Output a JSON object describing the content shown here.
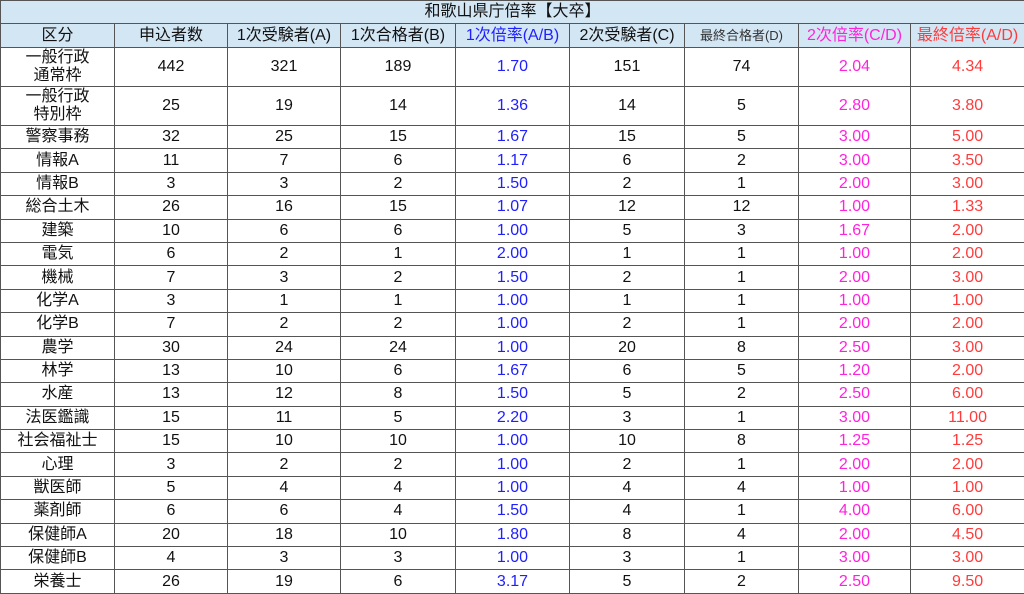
{
  "title": "和歌山県庁倍率【大卒】",
  "colors": {
    "ratio1": "#2020ff",
    "ratio2": "#ff22dd",
    "final_ratio": "#ff3b3b",
    "header_bg": "#d3e6f4"
  },
  "headers": [
    "区分",
    "申込者数",
    "1次受験者(A)",
    "1次合格者(B)",
    "1次倍率(A/B)",
    "2次受験者(C)",
    "最終合格者(D)",
    "2次倍率(C/D)",
    "最終倍率(A/D)"
  ],
  "rows": [
    [
      "一般行政\n通常枠",
      "442",
      "321",
      "189",
      "1.70",
      "151",
      "74",
      "2.04",
      "4.34"
    ],
    [
      "一般行政\n特別枠",
      "25",
      "19",
      "14",
      "1.36",
      "14",
      "5",
      "2.80",
      "3.80"
    ],
    [
      "警察事務",
      "32",
      "25",
      "15",
      "1.67",
      "15",
      "5",
      "3.00",
      "5.00"
    ],
    [
      "情報A",
      "11",
      "7",
      "6",
      "1.17",
      "6",
      "2",
      "3.00",
      "3.50"
    ],
    [
      "情報B",
      "3",
      "3",
      "2",
      "1.50",
      "2",
      "1",
      "2.00",
      "3.00"
    ],
    [
      "総合土木",
      "26",
      "16",
      "15",
      "1.07",
      "12",
      "12",
      "1.00",
      "1.33"
    ],
    [
      "建築",
      "10",
      "6",
      "6",
      "1.00",
      "5",
      "3",
      "1.67",
      "2.00"
    ],
    [
      "電気",
      "6",
      "2",
      "1",
      "2.00",
      "1",
      "1",
      "1.00",
      "2.00"
    ],
    [
      "機械",
      "7",
      "3",
      "2",
      "1.50",
      "2",
      "1",
      "2.00",
      "3.00"
    ],
    [
      "化学A",
      "3",
      "1",
      "1",
      "1.00",
      "1",
      "1",
      "1.00",
      "1.00"
    ],
    [
      "化学B",
      "7",
      "2",
      "2",
      "1.00",
      "2",
      "1",
      "2.00",
      "2.00"
    ],
    [
      "農学",
      "30",
      "24",
      "24",
      "1.00",
      "20",
      "8",
      "2.50",
      "3.00"
    ],
    [
      "林学",
      "13",
      "10",
      "6",
      "1.67",
      "6",
      "5",
      "1.20",
      "2.00"
    ],
    [
      "水産",
      "13",
      "12",
      "8",
      "1.50",
      "5",
      "2",
      "2.50",
      "6.00"
    ],
    [
      "法医鑑識",
      "15",
      "11",
      "5",
      "2.20",
      "3",
      "1",
      "3.00",
      "11.00"
    ],
    [
      "社会福祉士",
      "15",
      "10",
      "10",
      "1.00",
      "10",
      "8",
      "1.25",
      "1.25"
    ],
    [
      "心理",
      "3",
      "2",
      "2",
      "1.00",
      "2",
      "1",
      "2.00",
      "2.00"
    ],
    [
      "獣医師",
      "5",
      "4",
      "4",
      "1.00",
      "4",
      "4",
      "1.00",
      "1.00"
    ],
    [
      "薬剤師",
      "6",
      "6",
      "4",
      "1.50",
      "4",
      "1",
      "4.00",
      "6.00"
    ],
    [
      "保健師A",
      "20",
      "18",
      "10",
      "1.80",
      "8",
      "4",
      "2.00",
      "4.50"
    ],
    [
      "保健師B",
      "4",
      "3",
      "3",
      "1.00",
      "3",
      "1",
      "3.00",
      "3.00"
    ],
    [
      "栄養士",
      "26",
      "19",
      "6",
      "3.17",
      "5",
      "2",
      "2.50",
      "9.50"
    ]
  ]
}
